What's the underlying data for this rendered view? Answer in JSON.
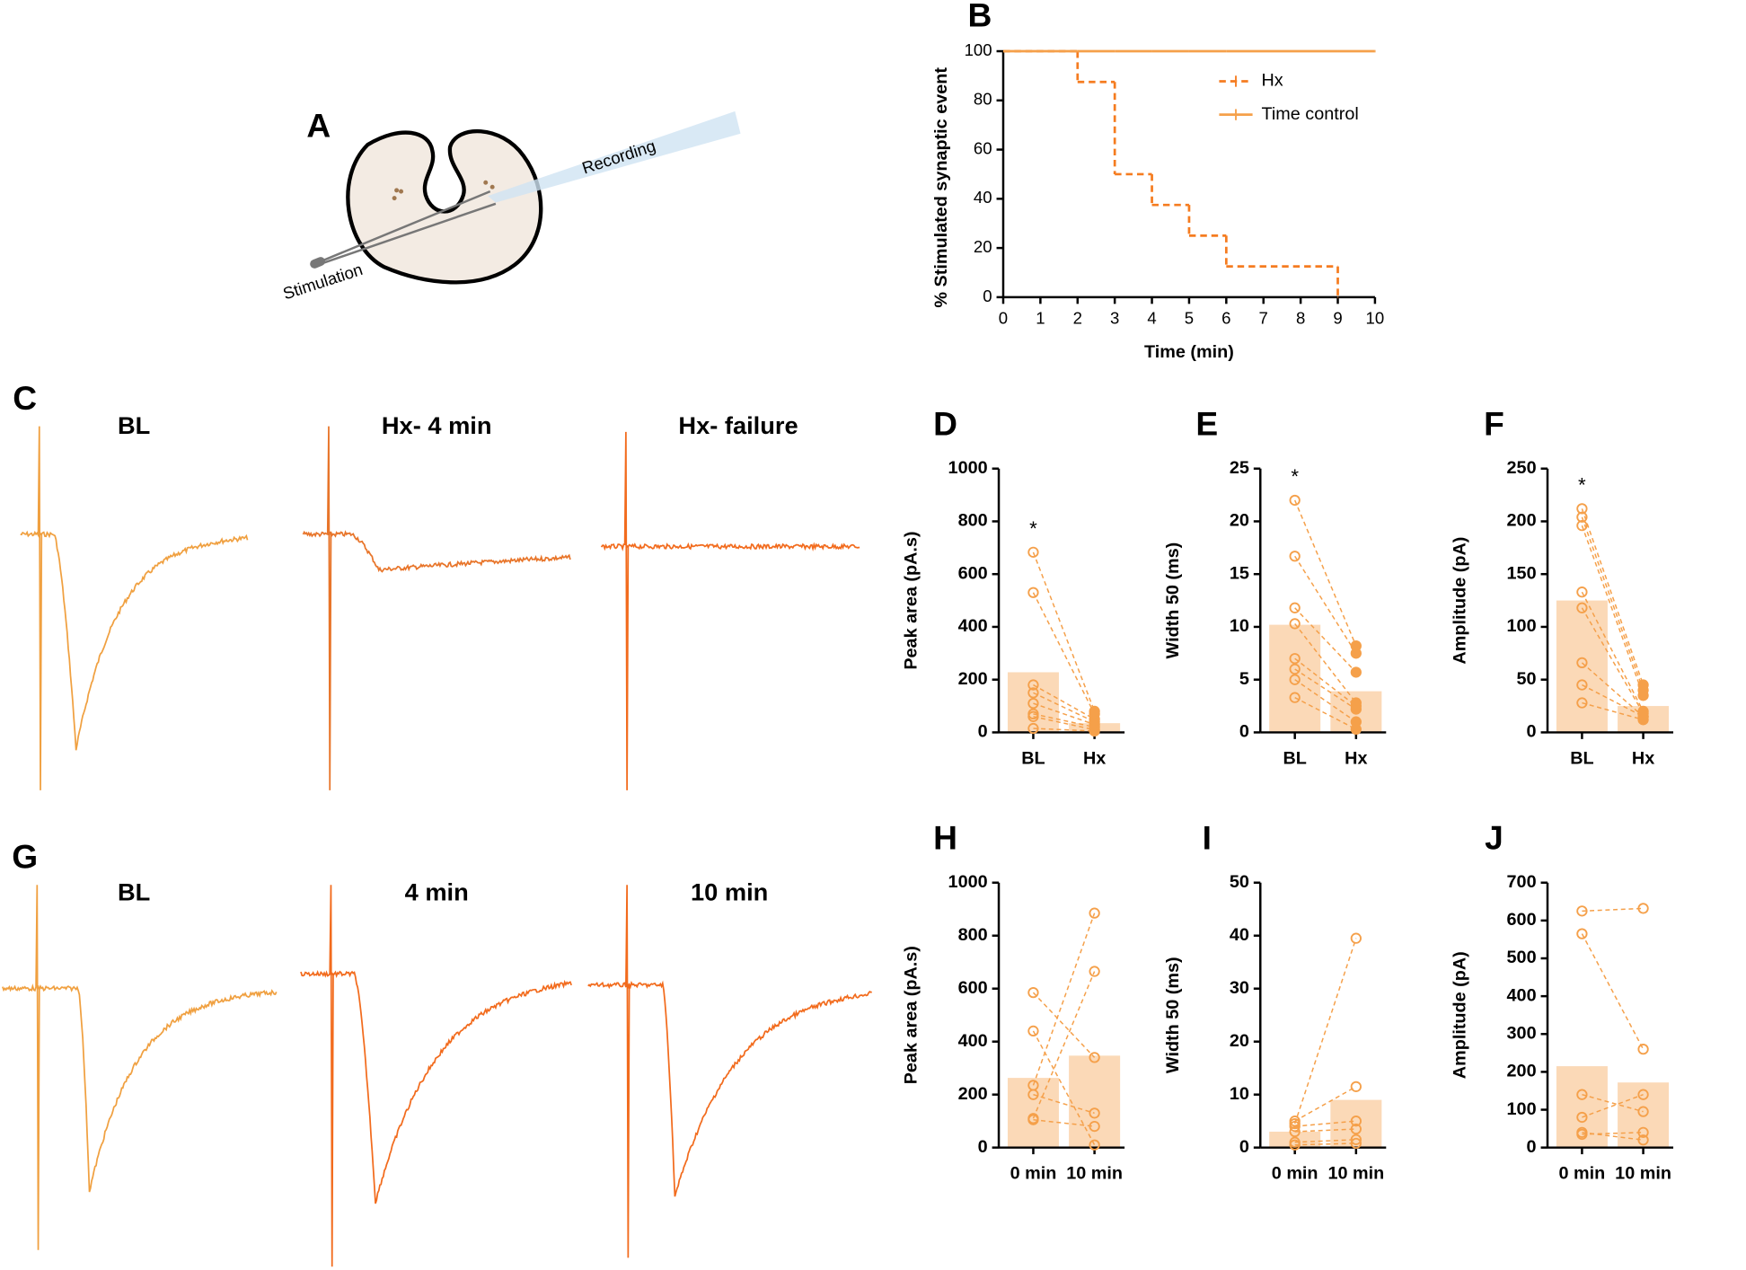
{
  "diagram": {
    "label": "A",
    "texts": [
      "Recording",
      "Stimulation"
    ]
  },
  "traces": [
    {
      "label": "C",
      "titles": [
        "BL",
        "Hx- 4 min",
        "Hx- failure"
      ]
    },
    {
      "label": "G",
      "titles": [
        "BL",
        "4 min",
        "10 min"
      ]
    }
  ],
  "chart_data": [
    {
      "type": "line",
      "panel_label": "B",
      "step": true,
      "x": [
        0,
        2,
        3,
        4,
        5,
        6,
        9,
        10
      ],
      "series": [
        {
          "name": "Hx",
          "color": "#f57c20",
          "dashed": true,
          "values": [
            100,
            87.5,
            50,
            37.5,
            25,
            12.5,
            0,
            null
          ]
        },
        {
          "name": "Time control",
          "color": "#f5a04a",
          "dashed": false,
          "values": [
            100,
            100,
            100,
            100,
            100,
            100,
            100,
            100
          ]
        }
      ],
      "xlim": [
        0,
        10
      ],
      "xticks": [
        0,
        1,
        2,
        3,
        4,
        5,
        6,
        7,
        8,
        9,
        10
      ],
      "ylim": [
        0,
        100
      ],
      "yticks": [
        0,
        20,
        40,
        60,
        80,
        100
      ],
      "xlabel": "Time (min)",
      "ylabel": "% Stimulated synaptic event",
      "legend": "top-right"
    },
    {
      "type": "bar",
      "panel_label": "D",
      "categories": [
        "BL",
        "Hx"
      ],
      "values": [
        228,
        35
      ],
      "color": "#fbd9b7",
      "point_color": "#f5a04a",
      "points": [
        [
          683,
          530,
          180,
          150,
          110,
          70,
          60,
          15
        ],
        [
          80,
          70,
          50,
          40,
          30,
          20,
          10,
          5
        ]
      ],
      "filled": [
        false,
        true
      ],
      "annotation": "*",
      "ylim": [
        0,
        1000
      ],
      "yticks": [
        0,
        200,
        400,
        600,
        800,
        1000
      ],
      "ylabel": "Peak area (pA.s)"
    },
    {
      "type": "bar",
      "panel_label": "E",
      "categories": [
        "BL",
        "Hx"
      ],
      "values": [
        10.2,
        3.9
      ],
      "color": "#fbd9b7",
      "point_color": "#f5a04a",
      "points": [
        [
          22,
          16.7,
          11.8,
          10.3,
          7,
          6,
          5,
          3.3
        ],
        [
          8.2,
          7.5,
          5.7,
          2.8,
          2.5,
          2.2,
          1,
          0.3
        ]
      ],
      "filled": [
        false,
        true
      ],
      "annotation": "*",
      "ylim": [
        0,
        25
      ],
      "yticks": [
        0,
        5,
        10,
        15,
        20,
        25
      ],
      "ylabel": "Width 50 (ms)"
    },
    {
      "type": "bar",
      "panel_label": "F",
      "categories": [
        "BL",
        "Hx"
      ],
      "values": [
        125,
        25
      ],
      "color": "#fbd9b7",
      "point_color": "#f5a04a",
      "points": [
        [
          212,
          204,
          196,
          133,
          118,
          66,
          45,
          28
        ],
        [
          45,
          40,
          35,
          20,
          18,
          15,
          15,
          12
        ]
      ],
      "filled": [
        false,
        true
      ],
      "annotation": "*",
      "ylim": [
        0,
        250
      ],
      "yticks": [
        0,
        50,
        100,
        150,
        200,
        250
      ],
      "ylabel": "Amplitude (pA)"
    },
    {
      "type": "bar",
      "panel_label": "H",
      "categories": [
        "0 min",
        "10 min"
      ],
      "values": [
        263,
        347
      ],
      "color": "#fbd9b7",
      "point_color": "#f5a04a",
      "points": [
        [
          585,
          440,
          235,
          200,
          110,
          105
        ],
        [
          340,
          10,
          885,
          130,
          665,
          80
        ]
      ],
      "filled": [
        false,
        false
      ],
      "ylim": [
        0,
        1000
      ],
      "yticks": [
        0,
        200,
        400,
        600,
        800,
        1000
      ],
      "ylabel": "Peak area (pA.s)"
    },
    {
      "type": "bar",
      "panel_label": "I",
      "categories": [
        "0 min",
        "10 min"
      ],
      "values": [
        3,
        9
      ],
      "color": "#fbd9b7",
      "point_color": "#f5a04a",
      "points": [
        [
          5,
          4.5,
          4,
          3,
          1,
          0.5
        ],
        [
          11.5,
          39.5,
          5,
          3.5,
          1.5,
          0.8
        ]
      ],
      "filled": [
        false,
        false
      ],
      "ylim": [
        0,
        50
      ],
      "yticks": [
        0,
        10,
        20,
        30,
        40,
        50
      ],
      "ylabel": "Width 50 (ms)"
    },
    {
      "type": "bar",
      "panel_label": "J",
      "categories": [
        "0 min",
        "10 min"
      ],
      "values": [
        215,
        172
      ],
      "color": "#fbd9b7",
      "point_color": "#f5a04a",
      "points": [
        [
          625,
          565,
          140,
          80,
          40,
          35
        ],
        [
          632,
          260,
          95,
          140,
          20,
          40
        ]
      ],
      "filled": [
        false,
        false
      ],
      "ylim": [
        0,
        700
      ],
      "yticks": [
        0,
        100,
        200,
        300,
        400,
        500,
        600,
        700
      ],
      "ylabel": "Amplitude (pA)"
    }
  ]
}
